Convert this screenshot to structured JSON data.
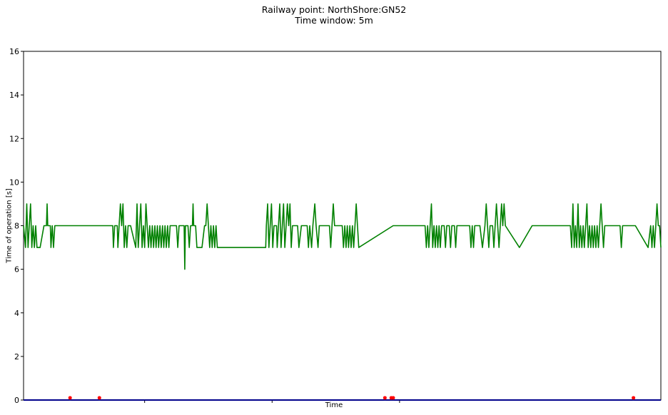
{
  "chart_data": {
    "type": "line",
    "title": "Railway point: NorthShore:GN52",
    "subtitle": "Time window: 5m",
    "xlabel": "Time",
    "ylabel": "Time of operation [s]",
    "ylim": [
      0,
      16
    ],
    "y_ticks": [
      0,
      2,
      4,
      6,
      8,
      10,
      12,
      14,
      16
    ],
    "x_ticks": [
      0.19,
      0.39,
      0.59
    ],
    "x_tick_labels": [],
    "xlim": [
      0,
      1
    ],
    "grid": false,
    "series": [
      {
        "color": "#008000",
        "points": [
          [
            0.0,
            8
          ],
          [
            0.003,
            7
          ],
          [
            0.005,
            9
          ],
          [
            0.007,
            7
          ],
          [
            0.009,
            8
          ],
          [
            0.011,
            9
          ],
          [
            0.013,
            7
          ],
          [
            0.015,
            8
          ],
          [
            0.017,
            7
          ],
          [
            0.019,
            8
          ],
          [
            0.021,
            7
          ],
          [
            0.026,
            7
          ],
          [
            0.032,
            8
          ],
          [
            0.036,
            8
          ],
          [
            0.037,
            9
          ],
          [
            0.038,
            8
          ],
          [
            0.042,
            8
          ],
          [
            0.043,
            7
          ],
          [
            0.045,
            8
          ],
          [
            0.047,
            7
          ],
          [
            0.049,
            8
          ],
          [
            0.055,
            8
          ],
          [
            0.14,
            8
          ],
          [
            0.141,
            7
          ],
          [
            0.143,
            8
          ],
          [
            0.147,
            8
          ],
          [
            0.148,
            7
          ],
          [
            0.15,
            8
          ],
          [
            0.152,
            9
          ],
          [
            0.154,
            8
          ],
          [
            0.156,
            9
          ],
          [
            0.158,
            7
          ],
          [
            0.16,
            8
          ],
          [
            0.162,
            7
          ],
          [
            0.164,
            8
          ],
          [
            0.168,
            8
          ],
          [
            0.176,
            7
          ],
          [
            0.178,
            9
          ],
          [
            0.18,
            7
          ],
          [
            0.182,
            8
          ],
          [
            0.184,
            9
          ],
          [
            0.186,
            7
          ],
          [
            0.188,
            8
          ],
          [
            0.19,
            7
          ],
          [
            0.192,
            9
          ],
          [
            0.194,
            8
          ],
          [
            0.196,
            7
          ],
          [
            0.198,
            8
          ],
          [
            0.2,
            7
          ],
          [
            0.202,
            8
          ],
          [
            0.204,
            7
          ],
          [
            0.206,
            8
          ],
          [
            0.208,
            7
          ],
          [
            0.21,
            8
          ],
          [
            0.212,
            7
          ],
          [
            0.214,
            8
          ],
          [
            0.216,
            7
          ],
          [
            0.218,
            8
          ],
          [
            0.22,
            7
          ],
          [
            0.222,
            8
          ],
          [
            0.224,
            7
          ],
          [
            0.226,
            8
          ],
          [
            0.228,
            7
          ],
          [
            0.23,
            8
          ],
          [
            0.24,
            8
          ],
          [
            0.242,
            7
          ],
          [
            0.244,
            8
          ],
          [
            0.252,
            8
          ],
          [
            0.253,
            6
          ],
          [
            0.254,
            8
          ],
          [
            0.258,
            8
          ],
          [
            0.26,
            7
          ],
          [
            0.262,
            8
          ],
          [
            0.265,
            8
          ],
          [
            0.266,
            9
          ],
          [
            0.267,
            8
          ],
          [
            0.27,
            8
          ],
          [
            0.272,
            7
          ],
          [
            0.28,
            7
          ],
          [
            0.284,
            8
          ],
          [
            0.286,
            8
          ],
          [
            0.288,
            9
          ],
          [
            0.29,
            8
          ],
          [
            0.292,
            7
          ],
          [
            0.294,
            8
          ],
          [
            0.296,
            7
          ],
          [
            0.298,
            8
          ],
          [
            0.3,
            7
          ],
          [
            0.302,
            8
          ],
          [
            0.304,
            7
          ],
          [
            0.38,
            7
          ],
          [
            0.381,
            8
          ],
          [
            0.383,
            9
          ],
          [
            0.385,
            7
          ],
          [
            0.387,
            8
          ],
          [
            0.389,
            9
          ],
          [
            0.391,
            7
          ],
          [
            0.393,
            8
          ],
          [
            0.397,
            8
          ],
          [
            0.398,
            7
          ],
          [
            0.4,
            8
          ],
          [
            0.402,
            9
          ],
          [
            0.404,
            7
          ],
          [
            0.406,
            8
          ],
          [
            0.408,
            9
          ],
          [
            0.41,
            7
          ],
          [
            0.412,
            8
          ],
          [
            0.414,
            9
          ],
          [
            0.416,
            8
          ],
          [
            0.418,
            9
          ],
          [
            0.42,
            7
          ],
          [
            0.422,
            8
          ],
          [
            0.43,
            8
          ],
          [
            0.432,
            7
          ],
          [
            0.436,
            8
          ],
          [
            0.445,
            8
          ],
          [
            0.447,
            7
          ],
          [
            0.449,
            8
          ],
          [
            0.452,
            7
          ],
          [
            0.454,
            8
          ],
          [
            0.457,
            9
          ],
          [
            0.459,
            8
          ],
          [
            0.462,
            7
          ],
          [
            0.464,
            8
          ],
          [
            0.48,
            8
          ],
          [
            0.482,
            7
          ],
          [
            0.484,
            8
          ],
          [
            0.486,
            9
          ],
          [
            0.488,
            8
          ],
          [
            0.5,
            8
          ],
          [
            0.502,
            7
          ],
          [
            0.504,
            8
          ],
          [
            0.506,
            7
          ],
          [
            0.508,
            8
          ],
          [
            0.51,
            7
          ],
          [
            0.512,
            8
          ],
          [
            0.514,
            7
          ],
          [
            0.516,
            8
          ],
          [
            0.518,
            7
          ],
          [
            0.52,
            8
          ],
          [
            0.522,
            9
          ],
          [
            0.524,
            8
          ],
          [
            0.526,
            7
          ],
          [
            0.58,
            8
          ],
          [
            0.63,
            8
          ],
          [
            0.632,
            7
          ],
          [
            0.634,
            8
          ],
          [
            0.636,
            7
          ],
          [
            0.638,
            8
          ],
          [
            0.64,
            9
          ],
          [
            0.642,
            7
          ],
          [
            0.644,
            8
          ],
          [
            0.646,
            7
          ],
          [
            0.648,
            8
          ],
          [
            0.65,
            7
          ],
          [
            0.652,
            8
          ],
          [
            0.654,
            7
          ],
          [
            0.656,
            8
          ],
          [
            0.66,
            8
          ],
          [
            0.662,
            7
          ],
          [
            0.664,
            8
          ],
          [
            0.668,
            8
          ],
          [
            0.67,
            7
          ],
          [
            0.672,
            8
          ],
          [
            0.676,
            8
          ],
          [
            0.678,
            7
          ],
          [
            0.68,
            8
          ],
          [
            0.7,
            8
          ],
          [
            0.702,
            7
          ],
          [
            0.704,
            8
          ],
          [
            0.706,
            7
          ],
          [
            0.708,
            8
          ],
          [
            0.716,
            8
          ],
          [
            0.72,
            7
          ],
          [
            0.724,
            8
          ],
          [
            0.726,
            9
          ],
          [
            0.728,
            8
          ],
          [
            0.73,
            7
          ],
          [
            0.732,
            8
          ],
          [
            0.736,
            8
          ],
          [
            0.738,
            7
          ],
          [
            0.74,
            8
          ],
          [
            0.742,
            9
          ],
          [
            0.744,
            8
          ],
          [
            0.746,
            7
          ],
          [
            0.748,
            8
          ],
          [
            0.75,
            9
          ],
          [
            0.752,
            8
          ],
          [
            0.754,
            9
          ],
          [
            0.756,
            8
          ],
          [
            0.778,
            7
          ],
          [
            0.798,
            8
          ],
          [
            0.858,
            8
          ],
          [
            0.86,
            7
          ],
          [
            0.862,
            9
          ],
          [
            0.864,
            7
          ],
          [
            0.866,
            8
          ],
          [
            0.868,
            7
          ],
          [
            0.87,
            9
          ],
          [
            0.872,
            7
          ],
          [
            0.874,
            8
          ],
          [
            0.876,
            7
          ],
          [
            0.878,
            8
          ],
          [
            0.88,
            7
          ],
          [
            0.882,
            8
          ],
          [
            0.884,
            9
          ],
          [
            0.886,
            7
          ],
          [
            0.888,
            8
          ],
          [
            0.89,
            7
          ],
          [
            0.892,
            8
          ],
          [
            0.894,
            7
          ],
          [
            0.896,
            8
          ],
          [
            0.898,
            7
          ],
          [
            0.9,
            8
          ],
          [
            0.902,
            7
          ],
          [
            0.904,
            8
          ],
          [
            0.906,
            9
          ],
          [
            0.908,
            8
          ],
          [
            0.91,
            7
          ],
          [
            0.912,
            8
          ],
          [
            0.936,
            8
          ],
          [
            0.938,
            7
          ],
          [
            0.94,
            8
          ],
          [
            0.96,
            8
          ],
          [
            0.98,
            7
          ],
          [
            0.984,
            8
          ],
          [
            0.986,
            7
          ],
          [
            0.988,
            8
          ],
          [
            0.99,
            7
          ],
          [
            0.992,
            8
          ],
          [
            0.994,
            9
          ],
          [
            0.996,
            8
          ],
          [
            0.998,
            8
          ],
          [
            1.0,
            7
          ]
        ]
      },
      {
        "color": "#00008b",
        "points": [
          [
            0,
            0
          ],
          [
            1,
            0
          ]
        ]
      }
    ],
    "markers": {
      "color": "#ff0000",
      "points": [
        [
          0.073,
          0.1
        ],
        [
          0.119,
          0.1
        ],
        [
          0.567,
          0.1
        ],
        [
          0.577,
          0.1
        ],
        [
          0.58,
          0.1
        ],
        [
          0.957,
          0.1
        ]
      ]
    }
  }
}
